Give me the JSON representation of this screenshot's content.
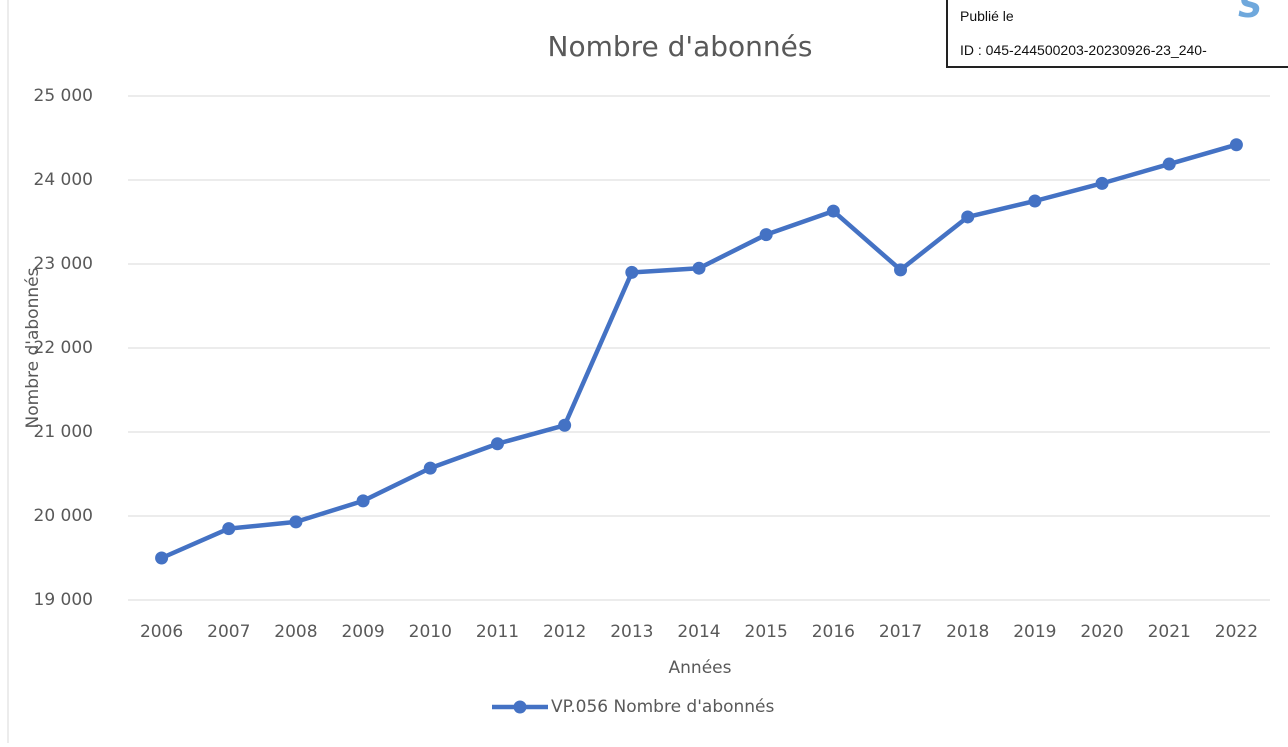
{
  "chart_data": {
    "type": "line",
    "title": "Nombre d'abonnés",
    "x_label": "Années",
    "y_label": "Nombre d'abonnés",
    "categories": [
      "2006",
      "2007",
      "2008",
      "2009",
      "2010",
      "2011",
      "2012",
      "2013",
      "2014",
      "2015",
      "2016",
      "2017",
      "2018",
      "2019",
      "2020",
      "2021",
      "2022"
    ],
    "series": [
      {
        "name": "VP.056 Nombre d'abonnés",
        "color": "#4472c4",
        "values": [
          19500,
          19850,
          19930,
          20180,
          20570,
          20860,
          21080,
          22900,
          22950,
          23350,
          23630,
          22930,
          23560,
          23750,
          23960,
          24190,
          24420
        ]
      }
    ],
    "ylim": [
      19000,
      25000
    ],
    "yticks": [
      {
        "value": 19000,
        "label": "19 000"
      },
      {
        "value": 20000,
        "label": "20 000"
      },
      {
        "value": 21000,
        "label": "21 000"
      },
      {
        "value": 22000,
        "label": "22 000"
      },
      {
        "value": 23000,
        "label": "23 000"
      },
      {
        "value": 24000,
        "label": "24 000"
      },
      {
        "value": 25000,
        "label": "25 000"
      }
    ],
    "grid": true,
    "legend": "bottom"
  },
  "stamp": {
    "published": "Publié le",
    "id": "ID : 045-244500203-20230926-23_240-",
    "logo": "S"
  }
}
